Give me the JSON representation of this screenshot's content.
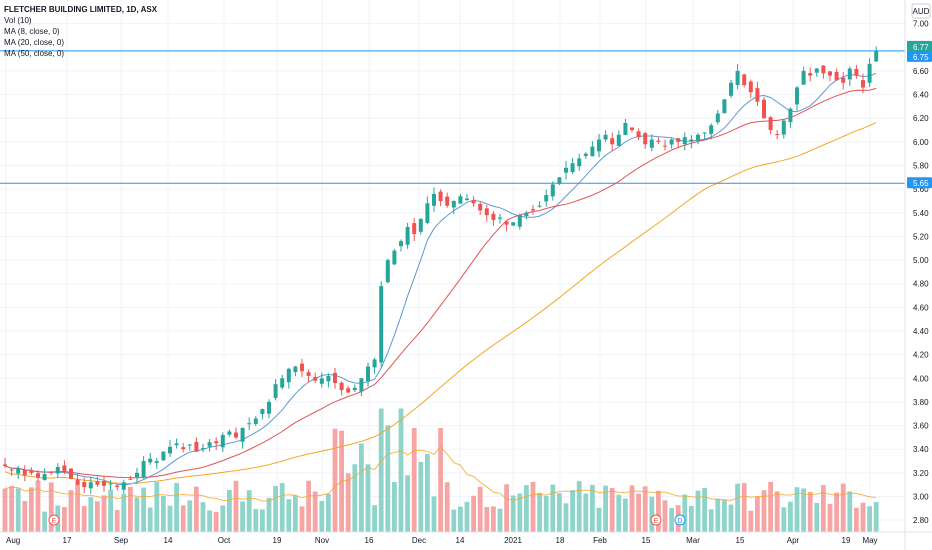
{
  "legend": {
    "title": "FLETCHER BUILDING LIMITED, 1D, ASX",
    "vol": "Vol (10)",
    "ma8": "MA (8, close, 0)",
    "ma20": "MA (20, close, 0)",
    "ma50": "MA (50, close, 0)"
  },
  "currency": "AUD",
  "colors": {
    "up": "#26a69a",
    "down": "#ef5350",
    "vol_up": "#8fd4cb",
    "vol_down": "#f5a6a4",
    "ma8": "#5b9bd5",
    "ma20": "#e05555",
    "ma50": "#f5a623",
    "vol_ma": "#f5a623",
    "hline": "#2196f3",
    "grid": "#f0f3fa",
    "last_tag": "#26a69a",
    "hline_tag": "#2196f3"
  },
  "chart_data": {
    "type": "candlestick",
    "title": "FLETCHER BUILDING LIMITED, 1D, ASX",
    "ylim": [
      2.7,
      7.2
    ],
    "y_ticks": [
      2.8,
      3.0,
      3.2,
      3.4,
      3.6,
      3.8,
      4.0,
      4.2,
      4.4,
      4.6,
      4.8,
      5.0,
      5.2,
      5.4,
      5.6,
      5.8,
      6.0,
      6.2,
      6.4,
      6.6,
      7.0
    ],
    "x_ticks": [
      "Aug",
      "17",
      "Sep",
      "14",
      "Oct",
      "19",
      "Nov",
      "16",
      "Dec",
      "14",
      "2021",
      "18",
      "Feb",
      "15",
      "Mar",
      "15",
      "Apr",
      "19",
      "May"
    ],
    "price_tags": [
      "6.77",
      "6.75",
      "5.65"
    ],
    "horizontal_lines": [
      6.77,
      5.65
    ],
    "events": [
      "E",
      "E",
      "D"
    ],
    "closes": [
      3.26,
      3.22,
      3.24,
      3.18,
      3.2,
      3.16,
      3.19,
      3.2,
      3.25,
      3.21,
      3.15,
      3.1,
      3.08,
      3.12,
      3.1,
      3.09,
      3.11,
      3.08,
      3.12,
      3.15,
      3.2,
      3.3,
      3.32,
      3.3,
      3.38,
      3.42,
      3.45,
      3.4,
      3.44,
      3.38,
      3.41,
      3.46,
      3.45,
      3.52,
      3.55,
      3.5,
      3.58,
      3.62,
      3.66,
      3.74,
      3.8,
      3.95,
      4.0,
      4.08,
      4.1,
      4.06,
      4.02,
      3.98,
      4.0,
      4.02,
      3.96,
      3.9,
      3.88,
      3.92,
      4.0,
      4.1,
      4.16,
      4.78,
      5.0,
      5.08,
      5.16,
      5.28,
      5.22,
      5.35,
      5.48,
      5.56,
      5.5,
      5.46,
      5.5,
      5.54,
      5.52,
      5.48,
      5.42,
      5.38,
      5.34,
      5.36,
      5.3,
      5.32,
      5.38,
      5.4,
      5.42,
      5.46,
      5.55,
      5.64,
      5.7,
      5.78,
      5.82,
      5.86,
      5.9,
      5.96,
      6.02,
      6.06,
      5.98,
      6.06,
      6.16,
      6.1,
      6.04,
      5.98,
      6.02,
      6.0,
      5.96,
      6.02,
      6.0,
      6.04,
      6.02,
      6.06,
      6.08,
      6.14,
      6.24,
      6.36,
      6.5,
      6.6,
      6.48,
      6.42,
      6.34,
      6.2,
      6.1,
      6.06,
      6.18,
      6.28,
      6.46,
      6.6,
      6.56,
      6.62,
      6.58,
      6.56,
      6.52,
      6.5,
      6.62,
      6.56,
      6.46,
      6.66,
      6.77
    ]
  }
}
